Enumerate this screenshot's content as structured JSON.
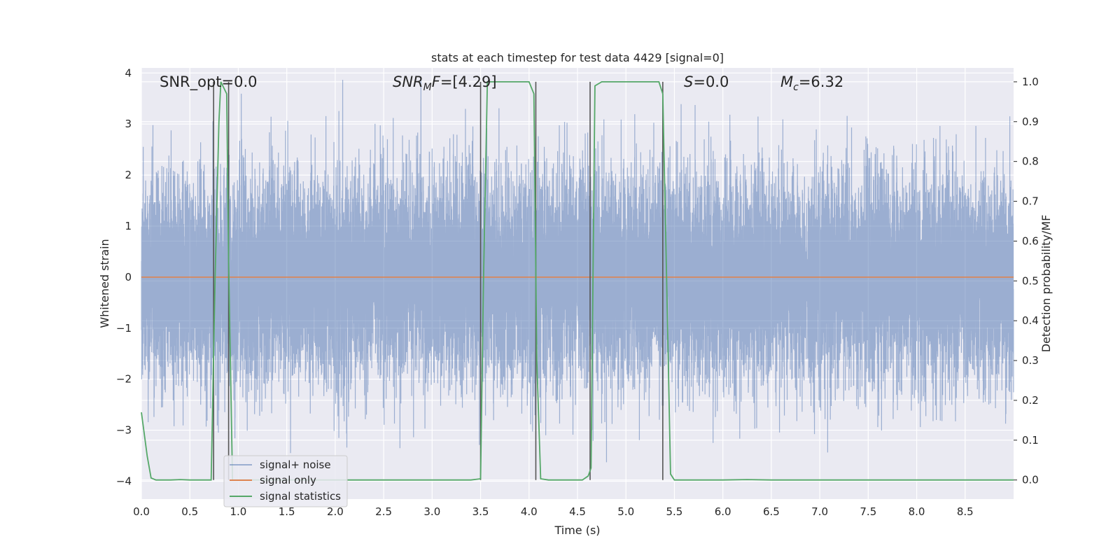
{
  "chart_data": {
    "type": "line",
    "title": "stats at each timestep for test data 4429 [signal=0]",
    "xlabel": "Time (s)",
    "ylabel": "Whitened strain",
    "y2label": "Detection probability/MF",
    "xlim": [
      0.0,
      9.0
    ],
    "ylim": [
      -4.35,
      4.1
    ],
    "y2lim": [
      -0.048,
      1.035
    ],
    "x_ticks": [
      0.0,
      0.5,
      1.0,
      1.5,
      2.0,
      2.5,
      3.0,
      3.5,
      4.0,
      4.5,
      5.0,
      5.5,
      6.0,
      6.5,
      7.0,
      7.5,
      8.0,
      8.5
    ],
    "y_ticks": [
      -4,
      -3,
      -2,
      -1,
      0,
      1,
      2,
      3,
      4
    ],
    "y2_ticks": [
      0.0,
      0.1,
      0.2,
      0.3,
      0.4,
      0.5,
      0.6,
      0.7,
      0.8,
      0.9,
      1.0
    ],
    "grid": true,
    "legend_position": "lower-left",
    "colors": {
      "noise": "#4c72b0",
      "signal": "#dd8452",
      "stats": "#55a868",
      "vline": "#555555",
      "background": "#eaeaf2"
    },
    "annotations": {
      "snr_opt": {
        "label": "SNR_opt",
        "value": "=0.0"
      },
      "snr_mf": {
        "label_base": "SNR",
        "label_sub": "M",
        "label_rest": "F",
        "value": "=[4.29]"
      },
      "s": {
        "label": "S",
        "value": "=0.0"
      },
      "mc": {
        "label_base": "M",
        "label_sub": "c",
        "value": "=6.32"
      }
    },
    "series": [
      {
        "name": "signal+ noise",
        "kind": "noise",
        "sample_rate_hz": 2048,
        "amplitude_std": 1.0,
        "x_range": [
          0.0,
          9.0
        ]
      },
      {
        "name": "signal only",
        "kind": "flat",
        "value": 0.0,
        "x_range": [
          0.0,
          9.0
        ]
      },
      {
        "name": "signal statistics",
        "kind": "line",
        "axis": "right",
        "x": [
          0.0,
          0.06,
          0.1,
          0.15,
          0.3,
          0.4,
          0.5,
          0.6,
          0.68,
          0.72,
          0.76,
          0.8,
          0.82,
          0.88,
          0.9,
          0.94,
          1.0,
          1.5,
          2.0,
          2.5,
          3.0,
          3.4,
          3.5,
          3.53,
          3.57,
          3.7,
          3.9,
          4.0,
          4.05,
          4.08,
          4.12,
          4.2,
          4.4,
          4.55,
          4.61,
          4.64,
          4.68,
          4.75,
          5.0,
          5.2,
          5.34,
          5.38,
          5.42,
          5.46,
          5.5,
          6.0,
          6.25,
          6.5,
          7.0,
          8.0,
          9.0
        ],
        "values": [
          0.17,
          0.06,
          0.005,
          0.0,
          0.0,
          0.001,
          0.0,
          0.0,
          0.0,
          0.0,
          0.5,
          0.9,
          1.0,
          0.97,
          0.55,
          0.0,
          0.0,
          0.0,
          0.0,
          0.0,
          0.0,
          0.0,
          0.003,
          0.5,
          1.0,
          1.0,
          1.0,
          1.0,
          0.97,
          0.3,
          0.003,
          0.0,
          0.0,
          0.0,
          0.01,
          0.03,
          0.99,
          1.0,
          1.0,
          1.0,
          1.0,
          0.97,
          0.5,
          0.015,
          0.0,
          0.0,
          0.001,
          0.0,
          0.0,
          0.0,
          0.0
        ]
      }
    ],
    "vlines": [
      {
        "x": 0.745,
        "y_range": [
          0.0,
          1.0
        ]
      },
      {
        "x": 0.9,
        "y_range": [
          0.0,
          1.0
        ]
      },
      {
        "x": 3.5,
        "y_range": [
          0.0,
          1.0
        ]
      },
      {
        "x": 4.07,
        "y_range": [
          0.0,
          1.0
        ]
      },
      {
        "x": 4.63,
        "y_range": [
          0.0,
          1.0
        ]
      },
      {
        "x": 5.38,
        "y_range": [
          0.0,
          1.0
        ]
      }
    ]
  }
}
